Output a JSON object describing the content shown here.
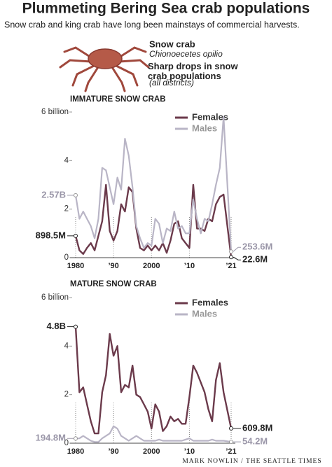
{
  "title": "Plummeting Bering Sea crab populations",
  "subtitle": "Snow crab and king crab have long been mainstays of commercial harvests.",
  "crab_name": "Snow crab",
  "crab_latin": "Chionoecetes opilio",
  "section_title": "Sharp drops in snow crab populations",
  "section_note": "(all districts)",
  "credit": "MARK NOWLIN / THE SEATTLE TIMES",
  "chart_data": [
    {
      "type": "line",
      "title": "IMMATURE SNOW CRAB",
      "x": [
        1980,
        1981,
        1982,
        1983,
        1984,
        1985,
        1986,
        1987,
        1988,
        1989,
        1990,
        1991,
        1992,
        1993,
        1994,
        1995,
        1996,
        1997,
        1998,
        1999,
        2000,
        2001,
        2002,
        2003,
        2004,
        2005,
        2006,
        2007,
        2008,
        2009,
        2010,
        2011,
        2012,
        2013,
        2014,
        2015,
        2016,
        2017,
        2018,
        2019,
        2021
      ],
      "series": [
        {
          "name": "Females",
          "color": "#6b3a4b",
          "values": [
            0.8985,
            0.3,
            0.15,
            0.4,
            0.6,
            0.3,
            0.9,
            1.5,
            3.0,
            1.1,
            0.7,
            1.1,
            2.2,
            1.9,
            2.9,
            2.7,
            1.2,
            0.4,
            0.3,
            0.5,
            0.3,
            0.5,
            0.3,
            0.6,
            0.2,
            0.7,
            1.4,
            1.5,
            0.8,
            0.6,
            0.4,
            3.0,
            1.2,
            1.2,
            1.1,
            1.6,
            1.5,
            2.2,
            2.5,
            2.6,
            0.0226
          ],
          "value_labels": [
            "898.5M",
            null,
            null,
            null,
            null,
            null,
            null,
            null,
            null,
            null,
            null,
            null,
            null,
            null,
            null,
            null,
            null,
            null,
            null,
            null,
            null,
            null,
            null,
            null,
            null,
            null,
            null,
            null,
            null,
            null,
            null,
            null,
            null,
            null,
            null,
            null,
            null,
            null,
            null,
            null,
            "22.6M"
          ]
        },
        {
          "name": "Males",
          "color": "#b9b5c6",
          "values": [
            2.57,
            1.6,
            1.9,
            1.6,
            1.3,
            0.8,
            1.6,
            3.7,
            3.6,
            2.9,
            2.2,
            3.3,
            2.8,
            4.9,
            4.2,
            2.9,
            1.3,
            0.8,
            0.4,
            0.6,
            0.5,
            1.6,
            1.4,
            0.6,
            1.2,
            1.1,
            1.9,
            1.2,
            1.3,
            1.0,
            1.0,
            2.4,
            1.6,
            1.0,
            1.6,
            1.5,
            2.2,
            3.0,
            3.7,
            5.8,
            0.2536
          ],
          "value_labels": [
            "2.57B",
            null,
            null,
            null,
            null,
            null,
            null,
            null,
            null,
            null,
            null,
            null,
            null,
            null,
            null,
            null,
            null,
            null,
            null,
            null,
            null,
            null,
            null,
            null,
            null,
            null,
            null,
            null,
            null,
            null,
            null,
            null,
            null,
            null,
            null,
            null,
            null,
            null,
            null,
            null,
            "253.6M"
          ]
        }
      ],
      "xlim": [
        1980,
        2021
      ],
      "xticks": [
        1980,
        {
          "value": 1990,
          "label": "’90"
        },
        2000,
        {
          "value": 2010,
          "label": "’10"
        },
        {
          "value": 2021,
          "label": "’21"
        }
      ],
      "ylim": [
        0,
        6
      ],
      "yticks": [
        0,
        2,
        4,
        {
          "value": 6,
          "label": "6 billion"
        }
      ],
      "grid": true
    },
    {
      "type": "line",
      "title": "MATURE SNOW CRAB",
      "x": [
        1980,
        1981,
        1982,
        1983,
        1984,
        1985,
        1986,
        1987,
        1988,
        1989,
        1990,
        1991,
        1992,
        1993,
        1994,
        1995,
        1996,
        1997,
        1998,
        1999,
        2000,
        2001,
        2002,
        2003,
        2004,
        2005,
        2006,
        2007,
        2008,
        2009,
        2010,
        2011,
        2012,
        2013,
        2014,
        2015,
        2016,
        2017,
        2018,
        2019,
        2021
      ],
      "series": [
        {
          "name": "Females",
          "color": "#6b3a4b",
          "values": [
            4.8,
            2.1,
            2.3,
            1.6,
            0.9,
            0.4,
            0.4,
            2.1,
            2.8,
            4.5,
            3.6,
            4.0,
            2.1,
            2.4,
            2.3,
            3.2,
            2.0,
            1.9,
            1.6,
            1.3,
            0.6,
            1.6,
            1.3,
            0.5,
            0.7,
            1.1,
            0.9,
            1.0,
            0.8,
            0.8,
            1.9,
            3.2,
            2.9,
            2.5,
            2.1,
            1.4,
            0.9,
            2.6,
            3.3,
            2.1,
            0.6098
          ],
          "value_labels": [
            "4.8B",
            null,
            null,
            null,
            null,
            null,
            null,
            null,
            null,
            null,
            null,
            null,
            null,
            null,
            null,
            null,
            null,
            null,
            null,
            null,
            null,
            null,
            null,
            null,
            null,
            null,
            null,
            null,
            null,
            null,
            null,
            null,
            null,
            null,
            null,
            null,
            null,
            null,
            null,
            null,
            "609.8M"
          ]
        },
        {
          "name": "Males",
          "color": "#b9b5c6",
          "values": [
            0.1948,
            0.2,
            0.3,
            0.2,
            0.1,
            0.05,
            0.05,
            0.2,
            0.3,
            0.4,
            0.7,
            0.6,
            0.3,
            0.2,
            0.1,
            0.2,
            0.3,
            0.2,
            0.1,
            0.1,
            0.1,
            0.1,
            0.15,
            0.1,
            0.1,
            0.1,
            0.1,
            0.1,
            0.1,
            0.15,
            0.2,
            0.1,
            0.1,
            0.1,
            0.1,
            0.1,
            0.15,
            0.1,
            0.1,
            0.1,
            0.0542
          ],
          "value_labels": [
            "194.8M",
            null,
            null,
            null,
            null,
            null,
            null,
            null,
            null,
            null,
            null,
            null,
            null,
            null,
            null,
            null,
            null,
            null,
            null,
            null,
            null,
            null,
            null,
            null,
            null,
            null,
            null,
            null,
            null,
            null,
            null,
            null,
            null,
            null,
            null,
            null,
            null,
            null,
            null,
            null,
            "54.2M"
          ]
        }
      ],
      "xlim": [
        1980,
        2021
      ],
      "xticks": [
        1980,
        {
          "value": 1990,
          "label": "’90"
        },
        2000,
        {
          "value": 2010,
          "label": "’10"
        },
        {
          "value": 2021,
          "label": "’21"
        }
      ],
      "ylim": [
        0,
        6
      ],
      "yticks": [
        0,
        2,
        4,
        {
          "value": 6,
          "label": "6 billion"
        }
      ],
      "grid": true
    }
  ]
}
